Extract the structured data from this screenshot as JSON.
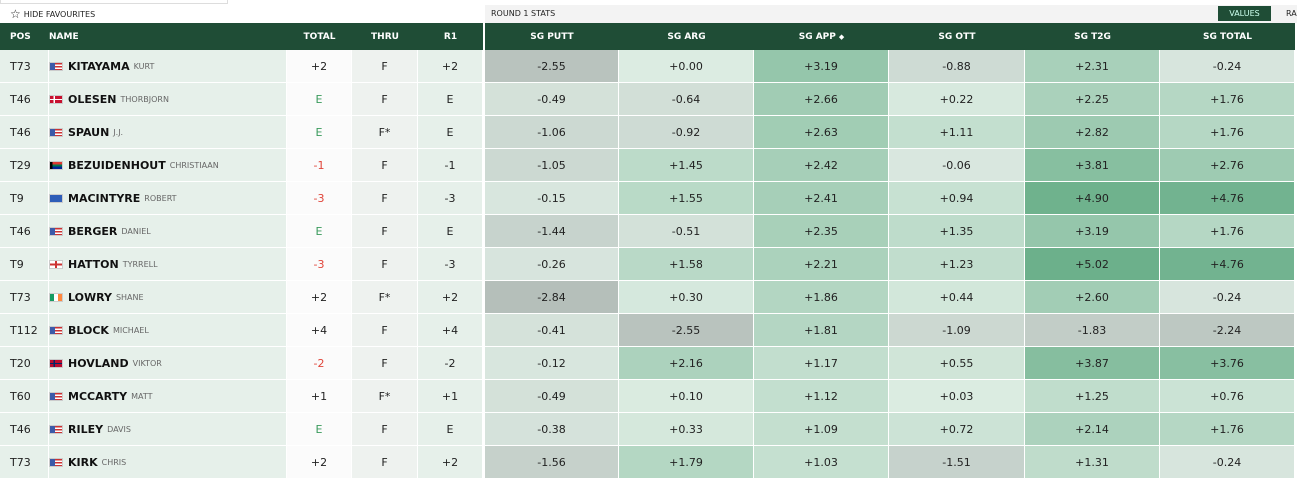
{
  "top": {
    "hide_favourites": "HIDE FAVOURITES",
    "round_stats": "ROUND 1 STATS",
    "values_button": "VALUES",
    "ra_button": "RA"
  },
  "table": {
    "headers": [
      "POS",
      "NAME",
      "TOTAL",
      "THRU",
      "R1",
      "SG PUTT",
      "SG ARG",
      "SG APP",
      "SG OTT",
      "SG T2G",
      "SG TOTAL"
    ],
    "rows": [
      [
        "T73",
        "KITAYAMA",
        "KURT",
        "+2",
        "F",
        "+2",
        "-2.55",
        "+0.00",
        "+3.19",
        "-0.88",
        "+2.31",
        "-0.24"
      ],
      [
        "T46",
        "OLESEN",
        "THORBJORN",
        "E",
        "F",
        "E",
        "-0.49",
        "-0.64",
        "+2.66",
        "+0.22",
        "+2.25",
        "+1.76"
      ],
      [
        "T46",
        "SPAUN",
        "J.J.",
        "E",
        "F*",
        "E",
        "-1.06",
        "-0.92",
        "+2.63",
        "+1.11",
        "+2.82",
        "+1.76"
      ],
      [
        "T29",
        "BEZUIDENHOUT",
        "CHRISTIAAN",
        "-1",
        "F",
        "-1",
        "-1.05",
        "+1.45",
        "+2.42",
        "-0.06",
        "+3.81",
        "+2.76"
      ],
      [
        "T9",
        "MACINTYRE",
        "ROBERT",
        "-3",
        "F",
        "-3",
        "-0.15",
        "+1.55",
        "+2.41",
        "+0.94",
        "+4.90",
        "+4.76"
      ],
      [
        "T46",
        "BERGER",
        "DANIEL",
        "E",
        "F",
        "E",
        "-1.44",
        "-0.51",
        "+2.35",
        "+1.35",
        "+3.19",
        "+1.76"
      ],
      [
        "T9",
        "HATTON",
        "TYRRELL",
        "-3",
        "F",
        "-3",
        "-0.26",
        "+1.58",
        "+2.21",
        "+1.23",
        "+5.02",
        "+4.76"
      ],
      [
        "T73",
        "LOWRY",
        "SHANE",
        "+2",
        "F*",
        "+2",
        "-2.84",
        "+0.30",
        "+1.86",
        "+0.44",
        "+2.60",
        "-0.24"
      ],
      [
        "T112",
        "BLOCK",
        "MICHAEL",
        "+4",
        "F",
        "+4",
        "-0.41",
        "-2.55",
        "+1.81",
        "-1.09",
        "-1.83",
        "-2.24"
      ],
      [
        "T20",
        "HOVLAND",
        "VIKTOR",
        "-2",
        "F",
        "-2",
        "-0.12",
        "+2.16",
        "+1.17",
        "+0.55",
        "+3.87",
        "+3.76"
      ],
      [
        "T60",
        "MCCARTY",
        "MATT",
        "+1",
        "F*",
        "+1",
        "-0.49",
        "+0.10",
        "+1.12",
        "+0.03",
        "+1.25",
        "+0.76"
      ],
      [
        "T46",
        "RILEY",
        "DAVIS",
        "E",
        "F",
        "E",
        "-0.38",
        "+0.33",
        "+1.09",
        "+0.72",
        "+2.14",
        "+1.76"
      ],
      [
        "T73",
        "KIRK",
        "CHRIS",
        "+2",
        "F",
        "+2",
        "-1.56",
        "+1.79",
        "+1.03",
        "-1.51",
        "+1.31",
        "-0.24"
      ]
    ]
  }
}
